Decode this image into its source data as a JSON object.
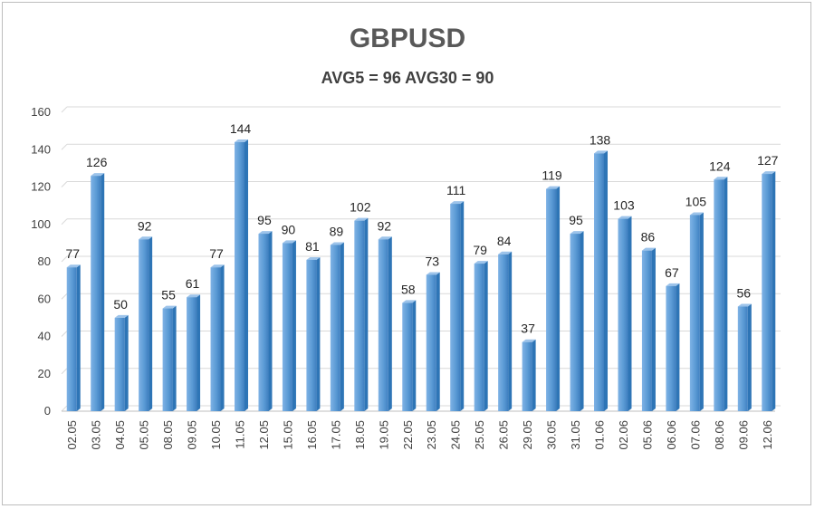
{
  "chart_data": {
    "type": "bar",
    "title": "GBPUSD",
    "subtitle": "AVG5 = 96 AVG30 = 90",
    "xlabel": "",
    "ylabel": "",
    "ylim": [
      0,
      160
    ],
    "yticks": [
      0,
      20,
      40,
      60,
      80,
      100,
      120,
      140,
      160
    ],
    "grid": true,
    "legend": "none",
    "bar_color": "#5b9bd5",
    "bar_dark_color": "#2e75b6",
    "categories": [
      "02.05",
      "03.05",
      "04.05",
      "05.05",
      "08.05",
      "09.05",
      "10.05",
      "11.05",
      "12.05",
      "15.05",
      "16.05",
      "17.05",
      "18.05",
      "19.05",
      "22.05",
      "23.05",
      "24.05",
      "25.05",
      "26.05",
      "29.05",
      "30.05",
      "31.05",
      "01.06",
      "02.06",
      "05.06",
      "06.06",
      "07.06",
      "08.06",
      "09.06",
      "12.06"
    ],
    "values": [
      77,
      126,
      50,
      92,
      55,
      61,
      77,
      144,
      95,
      90,
      81,
      89,
      102,
      92,
      58,
      73,
      111,
      79,
      84,
      37,
      119,
      95,
      138,
      103,
      86,
      67,
      105,
      124,
      56,
      127
    ]
  }
}
